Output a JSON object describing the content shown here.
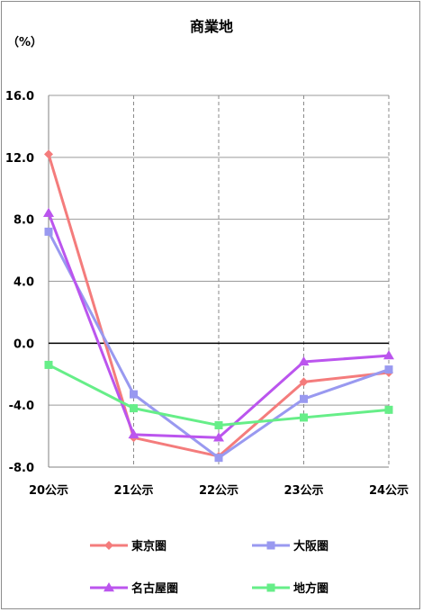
{
  "chart_data": {
    "type": "line",
    "title": "商業地",
    "unit_label": "（%）",
    "categories": [
      "20公示",
      "21公示",
      "22公示",
      "23公示",
      "24公示"
    ],
    "ylim": [
      -8.0,
      16.0
    ],
    "yticks": [
      "16.0",
      "12.0",
      "8.0",
      "4.0",
      "0.0",
      "-4.0",
      "-8.0"
    ],
    "ytick_values": [
      16,
      12,
      8,
      4,
      0,
      -4,
      -8
    ],
    "grid": {
      "horizontal": true,
      "vertical_dashed": true
    },
    "zero_line": true,
    "legend_position": "bottom",
    "series": [
      {
        "name": "東京圏",
        "color": "#f47c7c",
        "marker": "diamond",
        "values": [
          12.2,
          -6.1,
          -7.3,
          -2.5,
          -1.9
        ]
      },
      {
        "name": "大阪圏",
        "color": "#9999f0",
        "marker": "square",
        "values": [
          7.2,
          -3.3,
          -7.4,
          -3.6,
          -1.7
        ]
      },
      {
        "name": "名古屋圏",
        "color": "#bb55ee",
        "marker": "triangle",
        "values": [
          8.4,
          -5.9,
          -6.1,
          -1.2,
          -0.8
        ]
      },
      {
        "name": "地方圏",
        "color": "#66ee88",
        "marker": "square",
        "values": [
          -1.4,
          -4.2,
          -5.3,
          -4.8,
          -4.3
        ]
      }
    ]
  }
}
